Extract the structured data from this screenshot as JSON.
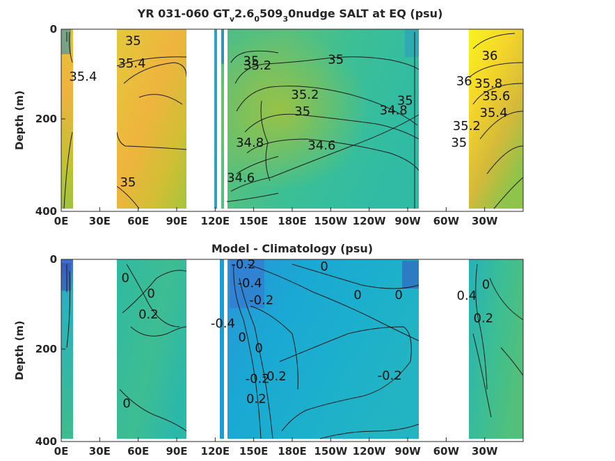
{
  "chart_data": [
    {
      "type": "heatmap",
      "title_parts": [
        "YR 031-060 GT",
        "v",
        "2.6",
        "0",
        "509",
        "3",
        "0nudge SALT at EQ (psu)"
      ],
      "ylabel": "Depth (m)",
      "x_tick_labels": [
        "0E",
        "30E",
        "60E",
        "90E",
        "120E",
        "150E",
        "180E",
        "150W",
        "120W",
        "90W",
        "60W",
        "30W"
      ],
      "x_tick_values_deg_east": [
        0,
        30,
        60,
        90,
        120,
        150,
        180,
        210,
        240,
        270,
        300,
        330
      ],
      "x_range_deg_east": [
        0,
        360
      ],
      "y_tick_labels": [
        "0",
        "200",
        "400"
      ],
      "y_tick_values": [
        0,
        200,
        400
      ],
      "ylim": [
        0,
        400
      ],
      "y_reversed": true,
      "colors": {
        "low": "#3d4bb5",
        "mid": "#2ab3c4",
        "high": "#f8f31d"
      },
      "land_gaps_deg_east": [
        [
          8,
          44
        ],
        [
          98,
          124
        ],
        [
          274,
          300
        ]
      ],
      "contour_labels": [
        {
          "text": "35",
          "lon": 56,
          "depth": 35
        },
        {
          "text": "35.4",
          "lon": 55,
          "depth": 85
        },
        {
          "text": "35.4",
          "lon": 17,
          "depth": 115
        },
        {
          "text": "35",
          "lon": 52,
          "depth": 350
        },
        {
          "text": "35",
          "lon": 148,
          "depth": 80
        },
        {
          "text": "35.2",
          "lon": 153,
          "depth": 90
        },
        {
          "text": "35",
          "lon": 214,
          "depth": 77
        },
        {
          "text": "35.2",
          "lon": 190,
          "depth": 155
        },
        {
          "text": "35",
          "lon": 188,
          "depth": 192
        },
        {
          "text": "34.8",
          "lon": 147,
          "depth": 262
        },
        {
          "text": "34.6",
          "lon": 203,
          "depth": 268
        },
        {
          "text": "34.6",
          "lon": 140,
          "depth": 340
        },
        {
          "text": "34.8",
          "lon": 259,
          "depth": 190
        },
        {
          "text": "35",
          "lon": 268,
          "depth": 168
        },
        {
          "text": "36",
          "lon": 334,
          "depth": 68
        },
        {
          "text": "36",
          "lon": 314,
          "depth": 125
        },
        {
          "text": "35.8",
          "lon": 333,
          "depth": 130
        },
        {
          "text": "35.6",
          "lon": 339,
          "depth": 158
        },
        {
          "text": "35.4",
          "lon": 337,
          "depth": 195
        },
        {
          "text": "35.2",
          "lon": 316,
          "depth": 225
        },
        {
          "text": "35",
          "lon": 310,
          "depth": 262
        }
      ]
    },
    {
      "type": "heatmap",
      "title": "Model - Climatology (psu)",
      "ylabel": "Depth (m)",
      "x_tick_labels": [
        "0E",
        "30E",
        "60E",
        "90E",
        "120E",
        "150E",
        "180E",
        "150W",
        "120W",
        "90W",
        "60W",
        "30W"
      ],
      "x_tick_values_deg_east": [
        0,
        30,
        60,
        90,
        120,
        150,
        180,
        210,
        240,
        270,
        300,
        330
      ],
      "x_range_deg_east": [
        0,
        360
      ],
      "y_tick_labels": [
        "0",
        "200",
        "400"
      ],
      "y_tick_values": [
        0,
        200,
        400
      ],
      "ylim": [
        0,
        400
      ],
      "y_reversed": true,
      "colors": {
        "low": "#3d4bb5",
        "mid": "#1aaed0",
        "high": "#4cc07a"
      },
      "land_gaps_deg_east": [
        [
          8,
          44
        ],
        [
          98,
          124
        ],
        [
          274,
          300
        ]
      ],
      "contour_labels": [
        {
          "text": "0",
          "lon": 50,
          "depth": 50
        },
        {
          "text": "0",
          "lon": 70,
          "depth": 85
        },
        {
          "text": "0.2",
          "lon": 68,
          "depth": 132
        },
        {
          "text": "0",
          "lon": 51,
          "depth": 330
        },
        {
          "text": "-0.2",
          "lon": 142,
          "depth": 20
        },
        {
          "text": "-0.4",
          "lon": 147,
          "depth": 62
        },
        {
          "text": "-0.2",
          "lon": 156,
          "depth": 100
        },
        {
          "text": "-0.4",
          "lon": 126,
          "depth": 152
        },
        {
          "text": "0",
          "lon": 141,
          "depth": 183
        },
        {
          "text": "0",
          "lon": 154,
          "depth": 207
        },
        {
          "text": "-0.2",
          "lon": 153,
          "depth": 275
        },
        {
          "text": "0.2",
          "lon": 152,
          "depth": 320
        },
        {
          "text": "-0.2",
          "lon": 166,
          "depth": 270
        },
        {
          "text": "0",
          "lon": 205,
          "depth": 25
        },
        {
          "text": "0",
          "lon": 231,
          "depth": 88
        },
        {
          "text": "0",
          "lon": 263,
          "depth": 88
        },
        {
          "text": "-0.2",
          "lon": 256,
          "depth": 268
        },
        {
          "text": "0",
          "lon": 331,
          "depth": 65
        },
        {
          "text": "0.4",
          "lon": 316,
          "depth": 90
        },
        {
          "text": "0.2",
          "lon": 329,
          "depth": 140
        }
      ]
    }
  ]
}
